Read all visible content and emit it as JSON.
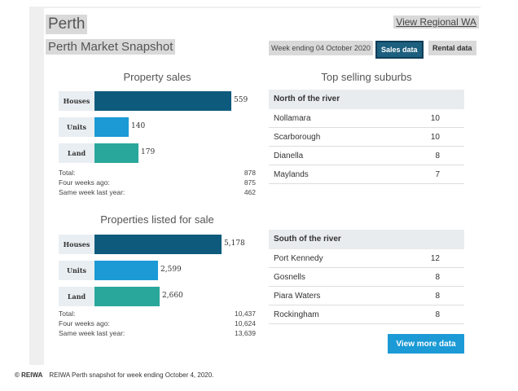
{
  "header": {
    "city": "Perth",
    "view_link": "View Regional WA",
    "snapshot_title": "Perth Market Snapshot",
    "week": "Week ending 04 October 2020",
    "tabs": [
      "Sales data",
      "Rental data"
    ],
    "active_tab": "Sales data"
  },
  "property_sales": {
    "title": "Property sales",
    "bars": [
      {
        "label": "Houses",
        "value": "559",
        "num": 559,
        "color": "#0e5a7d"
      },
      {
        "label": "Units",
        "value": "140",
        "num": 140,
        "color": "#1b9ad6"
      },
      {
        "label": "Land",
        "value": "179",
        "num": 179,
        "color": "#2aa79b"
      }
    ],
    "stats": [
      {
        "label": "Total:",
        "value": "878"
      },
      {
        "label": "Four weeks ago:",
        "value": "875"
      },
      {
        "label": "Same week last year:",
        "value": "462"
      }
    ]
  },
  "properties_listed": {
    "title": "Properties listed for sale",
    "bars": [
      {
        "label": "Houses",
        "value": "5,178",
        "num": 5178,
        "color": "#0e5a7d"
      },
      {
        "label": "Units",
        "value": "2,599",
        "num": 2599,
        "color": "#1b9ad6"
      },
      {
        "label": "Land",
        "value": "2,660",
        "num": 2660,
        "color": "#2aa79b"
      }
    ],
    "stats": [
      {
        "label": "Total:",
        "value": "10,437"
      },
      {
        "label": "Four weeks ago:",
        "value": "10,624"
      },
      {
        "label": "Same week last year:",
        "value": "13,639"
      }
    ]
  },
  "top_suburbs": {
    "title": "Top selling suburbs",
    "north": {
      "header": "North of the river",
      "rows": [
        {
          "name": "Nollamara",
          "count": "10"
        },
        {
          "name": "Scarborough",
          "count": "10"
        },
        {
          "name": "Dianella",
          "count": "8"
        },
        {
          "name": "Maylands",
          "count": "7"
        }
      ]
    },
    "south": {
      "header": "South of the river",
      "rows": [
        {
          "name": "Port Kennedy",
          "count": "12"
        },
        {
          "name": "Gosnells",
          "count": "8"
        },
        {
          "name": "Piara Waters",
          "count": "8"
        },
        {
          "name": "Rockingham",
          "count": "8"
        }
      ]
    }
  },
  "view_more": "View more data",
  "caption": {
    "credit": "© REIWA",
    "text": "REIWA Perth snapshot for week ending October 4, 2020."
  }
}
